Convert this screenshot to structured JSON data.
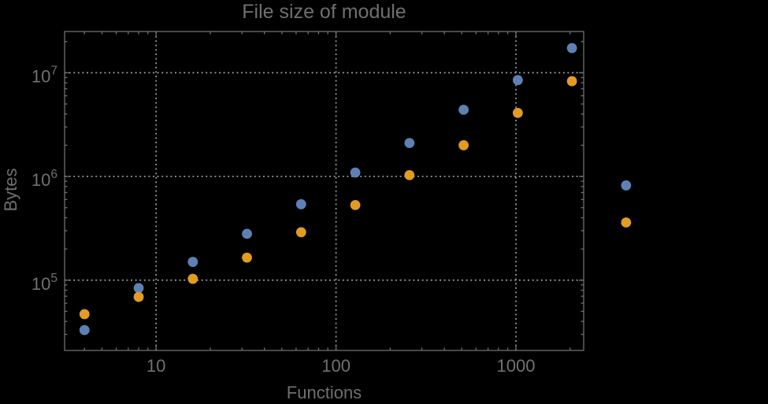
{
  "chart_data": {
    "type": "scatter",
    "title": "File size of module",
    "xlabel": "Functions",
    "ylabel": "Bytes",
    "x_scale": "log",
    "y_scale": "log",
    "grid": "dotted",
    "legend": "none",
    "x": [
      4,
      8,
      16,
      32,
      64,
      128,
      256,
      512,
      1024,
      2048,
      4096
    ],
    "series": [
      {
        "name": "series-blue",
        "color": "#5e81b5",
        "values": [
          33000,
          84000,
          150000,
          280000,
          540000,
          1090000,
          2100000,
          4400000,
          8500000,
          17300000,
          820000
        ]
      },
      {
        "name": "series-orange",
        "color": "#e19c24",
        "values": [
          47000,
          69000,
          103000,
          165000,
          290000,
          530000,
          1030000,
          2000000,
          4100000,
          8300000,
          360000
        ]
      }
    ],
    "axes": {
      "xlim": [
        3.1,
        2380
      ],
      "ylim": [
        21000,
        25000000
      ],
      "x_major_ticks": [
        10,
        100,
        1000
      ],
      "x_tick_labels": [
        "10",
        "100",
        "1000"
      ],
      "y_major_ticks": [
        100000,
        1000000,
        10000000
      ],
      "y_tick_base": "10",
      "y_tick_exponents": [
        "5",
        "6",
        "7"
      ]
    },
    "colors": {
      "background": "#000000",
      "frame": "#6f6f6f",
      "grid": "#9c9c9c",
      "text": "#717171",
      "title": "#6f6f6f"
    }
  }
}
